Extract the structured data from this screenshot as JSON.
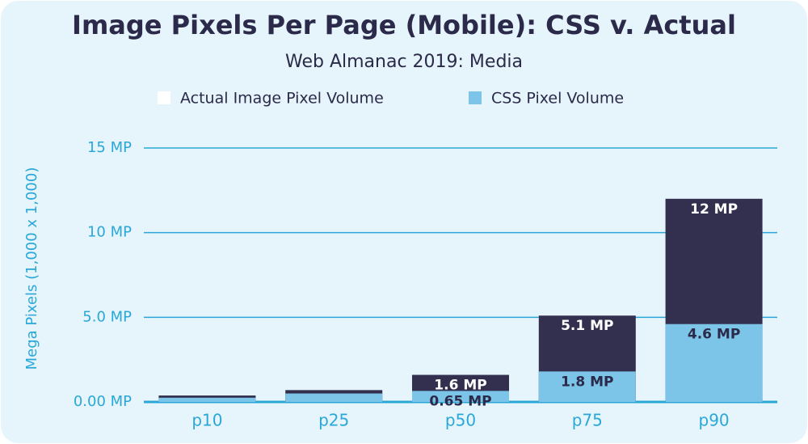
{
  "chart_data": {
    "type": "bar",
    "title": "Image Pixels Per Page (Mobile): CSS v. Actual",
    "subtitle": "Web Almanac 2019: Media",
    "y_label": "Mega Pixels (1,000 x 1,000)",
    "categories": [
      "p10",
      "p25",
      "p50",
      "p75",
      "p90"
    ],
    "series": [
      {
        "name": "Actual Image Pixel Volume",
        "color": "#332f4f",
        "legend_color": "#ffffff",
        "values": [
          0.38,
          0.7,
          1.6,
          5.1,
          12
        ],
        "value_labels": [
          null,
          null,
          "1.6 MP",
          "5.1 MP",
          "12 MP"
        ]
      },
      {
        "name": "CSS Pixel Volume",
        "color": "#7cc5e8",
        "legend_color": "#7cc5e8",
        "values": [
          0.25,
          0.5,
          0.65,
          1.8,
          4.6
        ],
        "value_labels": [
          null,
          null,
          "0.65 MP",
          "1.8 MP",
          "4.6 MP"
        ]
      }
    ],
    "ylim": [
      0,
      15
    ],
    "yticks": [
      {
        "value": 0,
        "label": "0.00 MP"
      },
      {
        "value": 5,
        "label": "5.0 MP"
      },
      {
        "value": 10,
        "label": "10 MP"
      },
      {
        "value": 15,
        "label": "15 MP"
      }
    ],
    "grid": true
  }
}
